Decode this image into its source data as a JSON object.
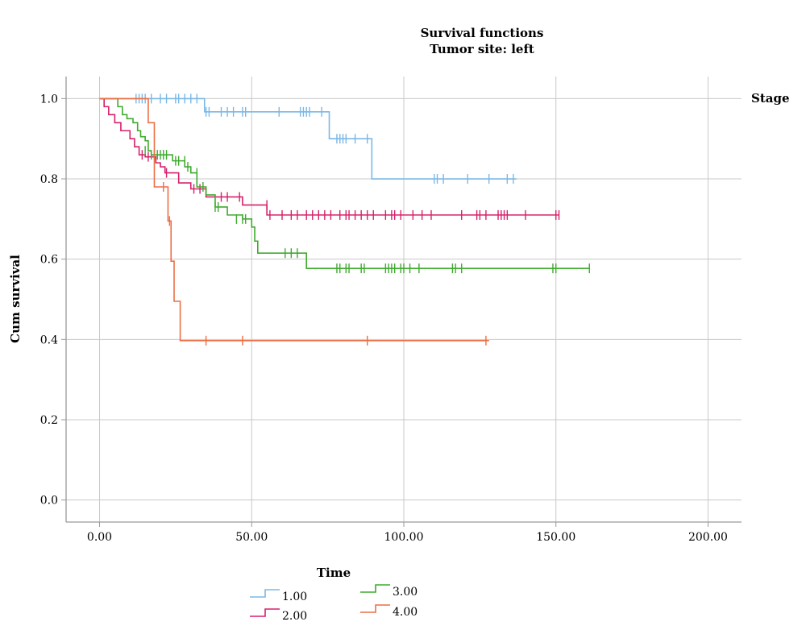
{
  "chart_data": {
    "type": "line",
    "title": "Survival functions",
    "subtitle": "Tumor site: left",
    "xlabel": "Time",
    "ylabel": "Cum survival",
    "legend_title": "Stage",
    "legend_placement": "bottom",
    "grid": true,
    "xlim": [
      -11,
      211
    ],
    "ylim": [
      -0.055,
      1.055
    ],
    "xticks": [
      0,
      50,
      100,
      150,
      200
    ],
    "xtick_labels": [
      "0.00",
      "50.00",
      "100.00",
      "150.00",
      "200.00"
    ],
    "yticks": [
      0,
      0.2,
      0.4,
      0.6,
      0.8,
      1.0
    ],
    "ytick_labels": [
      "0.0",
      "0.2",
      "0.4",
      "0.6",
      "0.8",
      "1.0"
    ],
    "series": [
      {
        "name": "1.00",
        "color": "#7ab8e6",
        "steps": [
          [
            0,
            1.0
          ],
          [
            34.5,
            0.967
          ],
          [
            75.5,
            0.9
          ],
          [
            89.5,
            0.8
          ],
          [
            137,
            0.8
          ]
        ],
        "censor": [
          [
            12,
            1.0
          ],
          [
            13,
            1.0
          ],
          [
            14,
            1.0
          ],
          [
            15,
            1.0
          ],
          [
            17,
            1.0
          ],
          [
            20,
            1.0
          ],
          [
            22,
            1.0
          ],
          [
            25,
            1.0
          ],
          [
            26,
            1.0
          ],
          [
            28,
            1.0
          ],
          [
            30,
            1.0
          ],
          [
            32,
            1.0
          ],
          [
            35,
            0.967
          ],
          [
            36,
            0.967
          ],
          [
            40,
            0.967
          ],
          [
            42,
            0.967
          ],
          [
            44,
            0.967
          ],
          [
            47,
            0.967
          ],
          [
            48,
            0.967
          ],
          [
            59,
            0.967
          ],
          [
            66,
            0.967
          ],
          [
            67,
            0.967
          ],
          [
            68,
            0.967
          ],
          [
            69,
            0.967
          ],
          [
            73,
            0.967
          ],
          [
            78,
            0.9
          ],
          [
            79,
            0.9
          ],
          [
            80,
            0.9
          ],
          [
            81,
            0.9
          ],
          [
            84,
            0.9
          ],
          [
            88,
            0.9
          ],
          [
            110,
            0.8
          ],
          [
            111,
            0.8
          ],
          [
            113,
            0.8
          ],
          [
            121,
            0.8
          ],
          [
            128,
            0.8
          ],
          [
            134,
            0.8
          ],
          [
            136,
            0.8
          ]
        ]
      },
      {
        "name": "2.00",
        "color": "#d6216a",
        "steps": [
          [
            0,
            1.0
          ],
          [
            1.5,
            0.98
          ],
          [
            3,
            0.96
          ],
          [
            5,
            0.94
          ],
          [
            7,
            0.92
          ],
          [
            10,
            0.9
          ],
          [
            11.5,
            0.88
          ],
          [
            13,
            0.86
          ],
          [
            15,
            0.855
          ],
          [
            18.5,
            0.84
          ],
          [
            20,
            0.83
          ],
          [
            21.5,
            0.815
          ],
          [
            26,
            0.79
          ],
          [
            30,
            0.775
          ],
          [
            35,
            0.755
          ],
          [
            47,
            0.735
          ],
          [
            55,
            0.71
          ],
          [
            151,
            0.71
          ]
        ],
        "censor": [
          [
            14,
            0.86
          ],
          [
            16,
            0.855
          ],
          [
            22,
            0.815
          ],
          [
            31,
            0.775
          ],
          [
            33,
            0.775
          ],
          [
            40,
            0.755
          ],
          [
            42,
            0.755
          ],
          [
            46,
            0.755
          ],
          [
            55,
            0.735
          ],
          [
            56,
            0.71
          ],
          [
            60,
            0.71
          ],
          [
            63,
            0.71
          ],
          [
            65,
            0.71
          ],
          [
            68,
            0.71
          ],
          [
            70,
            0.71
          ],
          [
            72,
            0.71
          ],
          [
            74,
            0.71
          ],
          [
            76,
            0.71
          ],
          [
            79,
            0.71
          ],
          [
            81,
            0.71
          ],
          [
            82,
            0.71
          ],
          [
            84,
            0.71
          ],
          [
            86,
            0.71
          ],
          [
            88,
            0.71
          ],
          [
            90,
            0.71
          ],
          [
            94,
            0.71
          ],
          [
            96,
            0.71
          ],
          [
            97,
            0.71
          ],
          [
            99,
            0.71
          ],
          [
            103,
            0.71
          ],
          [
            106,
            0.71
          ],
          [
            109,
            0.71
          ],
          [
            119,
            0.71
          ],
          [
            124,
            0.71
          ],
          [
            125,
            0.71
          ],
          [
            127,
            0.71
          ],
          [
            131,
            0.71
          ],
          [
            132,
            0.71
          ],
          [
            133,
            0.71
          ],
          [
            134,
            0.71
          ],
          [
            140,
            0.71
          ],
          [
            150,
            0.71
          ],
          [
            151,
            0.71
          ]
        ]
      },
      {
        "name": "3.00",
        "color": "#3faa2f",
        "steps": [
          [
            0,
            1.0
          ],
          [
            6,
            0.98
          ],
          [
            7.5,
            0.96
          ],
          [
            9,
            0.95
          ],
          [
            11,
            0.94
          ],
          [
            12.5,
            0.92
          ],
          [
            13.5,
            0.905
          ],
          [
            15,
            0.895
          ],
          [
            16,
            0.87
          ],
          [
            17,
            0.86
          ],
          [
            24,
            0.845
          ],
          [
            28,
            0.83
          ],
          [
            30,
            0.815
          ],
          [
            32,
            0.78
          ],
          [
            35,
            0.76
          ],
          [
            38,
            0.73
          ],
          [
            42,
            0.71
          ],
          [
            47,
            0.7
          ],
          [
            50,
            0.68
          ],
          [
            51,
            0.645
          ],
          [
            52,
            0.615
          ],
          [
            68,
            0.577
          ],
          [
            161,
            0.577
          ]
        ],
        "censor": [
          [
            15,
            0.87
          ],
          [
            17,
            0.86
          ],
          [
            18,
            0.86
          ],
          [
            19,
            0.86
          ],
          [
            20,
            0.86
          ],
          [
            21,
            0.86
          ],
          [
            22,
            0.86
          ],
          [
            25,
            0.845
          ],
          [
            26,
            0.845
          ],
          [
            28,
            0.845
          ],
          [
            29,
            0.83
          ],
          [
            32,
            0.815
          ],
          [
            34,
            0.78
          ],
          [
            38,
            0.73
          ],
          [
            39,
            0.73
          ],
          [
            45,
            0.7
          ],
          [
            47,
            0.7
          ],
          [
            48,
            0.7
          ],
          [
            61,
            0.615
          ],
          [
            63,
            0.615
          ],
          [
            65,
            0.615
          ],
          [
            78,
            0.577
          ],
          [
            79,
            0.577
          ],
          [
            81,
            0.577
          ],
          [
            82,
            0.577
          ],
          [
            86,
            0.577
          ],
          [
            87,
            0.577
          ],
          [
            94,
            0.577
          ],
          [
            95,
            0.577
          ],
          [
            96,
            0.577
          ],
          [
            97,
            0.577
          ],
          [
            99,
            0.577
          ],
          [
            100,
            0.577
          ],
          [
            102,
            0.577
          ],
          [
            105,
            0.577
          ],
          [
            116,
            0.577
          ],
          [
            117,
            0.577
          ],
          [
            119,
            0.577
          ],
          [
            149,
            0.577
          ],
          [
            150,
            0.577
          ],
          [
            161,
            0.577
          ]
        ]
      },
      {
        "name": "4.00",
        "color": "#ec6f45",
        "steps": [
          [
            0,
            1.0
          ],
          [
            16,
            0.94
          ],
          [
            18,
            0.78
          ],
          [
            22,
            0.78
          ],
          [
            22.5,
            0.695
          ],
          [
            23.5,
            0.595
          ],
          [
            24.5,
            0.495
          ],
          [
            26.5,
            0.397
          ],
          [
            128,
            0.397
          ]
        ],
        "censor": [
          [
            21,
            0.78
          ],
          [
            23,
            0.695
          ],
          [
            35,
            0.397
          ],
          [
            47,
            0.397
          ],
          [
            88,
            0.397
          ],
          [
            127,
            0.397
          ]
        ]
      }
    ]
  }
}
